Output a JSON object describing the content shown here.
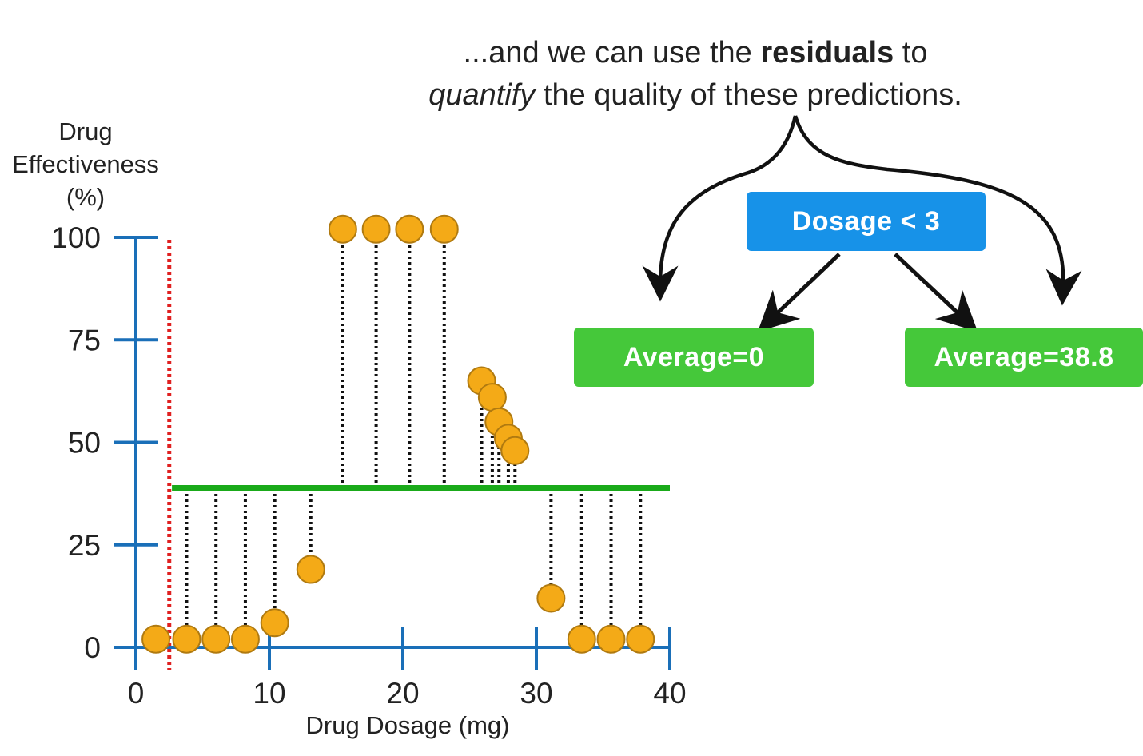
{
  "caption": {
    "line1_pre": "...and we can use the ",
    "line1_bold": "residuals",
    "line1_post": " to",
    "line2_italic": "quantify",
    "line2_post": " the quality of these predictions."
  },
  "tree": {
    "root_label": "Dosage < 3",
    "left_leaf_label": "Average=0",
    "right_leaf_label": "Average=38.8",
    "root_color": "#1792e8",
    "leaf_color": "#45c83a"
  },
  "chart_data": {
    "type": "scatter",
    "xlabel": "Drug Dosage (mg)",
    "ylabel_lines": [
      "Drug",
      "Effectiveness",
      "(%)"
    ],
    "xlim": [
      0,
      40
    ],
    "ylim": [
      0,
      100
    ],
    "x_ticks": [
      0,
      10,
      20,
      30,
      40
    ],
    "y_ticks": [
      0,
      25,
      50,
      75,
      100
    ],
    "points": [
      {
        "x": 1.5,
        "y": 2
      },
      {
        "x": 3.8,
        "y": 2
      },
      {
        "x": 6,
        "y": 2
      },
      {
        "x": 8.2,
        "y": 2
      },
      {
        "x": 10.4,
        "y": 6
      },
      {
        "x": 13.1,
        "y": 19
      },
      {
        "x": 15.5,
        "y": 102
      },
      {
        "x": 18,
        "y": 102
      },
      {
        "x": 20.5,
        "y": 102
      },
      {
        "x": 23.1,
        "y": 102
      },
      {
        "x": 25.9,
        "y": 65
      },
      {
        "x": 26.7,
        "y": 61
      },
      {
        "x": 27.2,
        "y": 55
      },
      {
        "x": 27.9,
        "y": 51
      },
      {
        "x": 28.4,
        "y": 48
      },
      {
        "x": 31.1,
        "y": 12
      },
      {
        "x": 33.4,
        "y": 2
      },
      {
        "x": 35.6,
        "y": 2
      },
      {
        "x": 37.8,
        "y": 2
      }
    ],
    "split_threshold": 2.5,
    "prediction_line": {
      "value": 38.8,
      "x_from": 2.7,
      "x_to": 40
    },
    "residuals_from_index": 1,
    "colors": {
      "axis": "#1a6fb8",
      "point_fill": "#f4aa17",
      "point_stroke": "#b07a10",
      "prediction": "#1aaa1a",
      "threshold": "#e02020",
      "residual": "#111111"
    }
  }
}
